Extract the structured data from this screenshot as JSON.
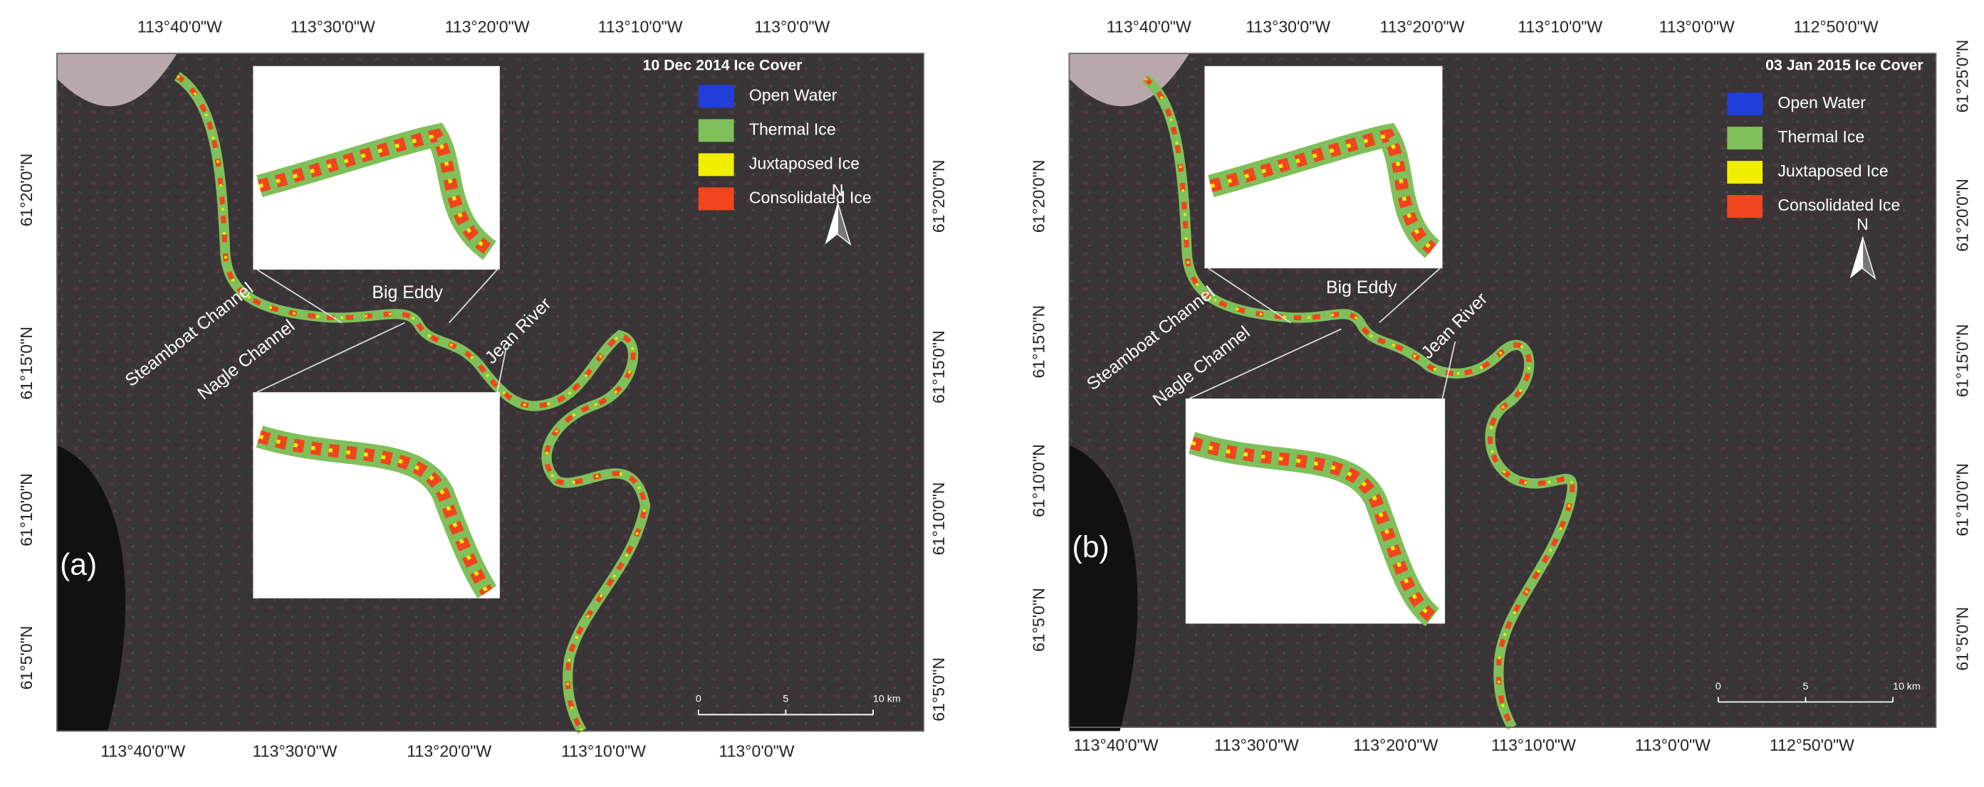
{
  "panels": [
    {
      "label": "(a)",
      "title": "10 Dec 2014 Ice Cover",
      "legend": [
        {
          "label": "Open Water",
          "color": "#1f3fd8"
        },
        {
          "label": "Thermal Ice",
          "color": "#7fc05a"
        },
        {
          "label": "Juxtaposed Ice",
          "color": "#f2ee00"
        },
        {
          "label": "Consolidated Ice",
          "color": "#f0451e"
        }
      ],
      "top_labels": [
        "113°40'0\"W",
        "113°30'0\"W",
        "113°20'0\"W",
        "113°10'0\"W",
        "113°0'0\"W"
      ],
      "bottom_labels": [
        "113°40'0\"W",
        "113°30'0\"W",
        "113°20'0\"W",
        "113°10'0\"W",
        "113°0'0\"W"
      ],
      "left_labels": [
        "61°20'0\"N",
        "61°15'0\"N",
        "61°10'0\"N",
        "61°5'0\"N"
      ],
      "right_labels": [
        "61°20'0\"N",
        "61°15'0\"N",
        "61°10'0\"N",
        "61°5'0\"N"
      ],
      "places": [
        "Steamboat Channel",
        "Nagle Channel",
        "Big Eddy",
        "Jean River"
      ],
      "north": "N",
      "scale": [
        "0",
        "5",
        "10 km"
      ]
    },
    {
      "label": "(b)",
      "title": "03 Jan 2015 Ice Cover",
      "legend": [
        {
          "label": "Open Water",
          "color": "#1f3fd8"
        },
        {
          "label": "Thermal Ice",
          "color": "#7fc05a"
        },
        {
          "label": "Juxtaposed Ice",
          "color": "#f2ee00"
        },
        {
          "label": "Consolidated Ice",
          "color": "#f0451e"
        }
      ],
      "top_labels": [
        "113°40'0\"W",
        "113°30'0\"W",
        "113°20'0\"W",
        "113°10'0\"W",
        "113°0'0\"W",
        "112°50'0\"W"
      ],
      "bottom_labels": [
        "113°40'0\"W",
        "113°30'0\"W",
        "113°20'0\"W",
        "113°10'0\"W",
        "113°0'0\"W",
        "112°50'0\"W"
      ],
      "left_labels": [
        "61°20'0\"N",
        "61°15'0\"N",
        "61°10'0\"N",
        "61°5'0\"N"
      ],
      "right_labels": [
        "61°25'0\"N",
        "61°20'0\"N",
        "61°15'0\"N",
        "61°10'0\"N",
        "61°5'0\"N"
      ],
      "places": [
        "Steamboat Channel",
        "Nagle Channel",
        "Big Eddy",
        "Jean River"
      ],
      "north": "N",
      "scale": [
        "0",
        "5",
        "10 km"
      ]
    }
  ]
}
